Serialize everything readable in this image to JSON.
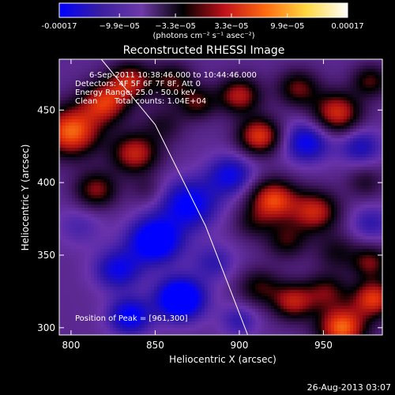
{
  "chart_data": {
    "type": "heatmap",
    "title": "Reconstructed RHESSI Image",
    "xlabel": "Heliocentric X (arcsec)",
    "ylabel": "Heliocentric Y (arcsec)",
    "xlim": [
      793,
      985
    ],
    "ylim": [
      295,
      485
    ],
    "x_ticks": [
      800,
      850,
      900,
      950
    ],
    "y_ticks": [
      300,
      350,
      400,
      450
    ],
    "colorbar": {
      "label": "(photons cm⁻² s⁻¹ asec⁻²)",
      "range": [
        -0.00017,
        0.00017
      ],
      "tick_values": [
        -0.00017,
        -9.9e-05,
        -3.3e-05,
        3.3e-05,
        9.9e-05,
        0.00017
      ],
      "tick_labels": [
        "-0.00017",
        "−9.9e−05",
        "−3.3e−05",
        "3.3e−05",
        "9.9e−05",
        "0.00017"
      ],
      "colors": [
        "#0000ff",
        "#3a1ea0",
        "#6e3aa8",
        "#000000",
        "#c0101a",
        "#ff6a10",
        "#ffd840",
        "#ffffff"
      ]
    },
    "annotations": [
      "6-Sep-2011 10:38:46.000 to 10:44:46.000",
      "Detectors: 4F 5F 6F 7F 8F, Att 0",
      "Energy Range: 25.0 - 50.0 keV",
      "Clean",
      "Total counts: 1.04E+04"
    ],
    "peak_label": "Position of Peak = [961,300]",
    "peak": [
      961,
      300
    ],
    "limb_curve": [
      [
        818,
        485
      ],
      [
        850,
        440
      ],
      [
        880,
        370
      ],
      [
        905,
        295
      ]
    ],
    "blobs": [
      {
        "x": 800,
        "y": 435,
        "v": 1.0,
        "s": 12
      },
      {
        "x": 820,
        "y": 455,
        "v": 0.8,
        "s": 10
      },
      {
        "x": 838,
        "y": 420,
        "v": 0.75,
        "s": 10
      },
      {
        "x": 835,
        "y": 470,
        "v": 0.7,
        "s": 9
      },
      {
        "x": 815,
        "y": 395,
        "v": 0.6,
        "s": 9
      },
      {
        "x": 805,
        "y": 370,
        "v": -0.2,
        "s": 10
      },
      {
        "x": 860,
        "y": 470,
        "v": 0.5,
        "s": 9
      },
      {
        "x": 855,
        "y": 440,
        "v": 0.3,
        "s": 9
      },
      {
        "x": 875,
        "y": 455,
        "v": 0.5,
        "s": 8
      },
      {
        "x": 900,
        "y": 460,
        "v": 0.7,
        "s": 9
      },
      {
        "x": 912,
        "y": 432,
        "v": 0.85,
        "s": 9
      },
      {
        "x": 935,
        "y": 465,
        "v": 0.55,
        "s": 9
      },
      {
        "x": 958,
        "y": 448,
        "v": 0.8,
        "s": 10
      },
      {
        "x": 978,
        "y": 470,
        "v": 0.5,
        "s": 8
      },
      {
        "x": 940,
        "y": 428,
        "v": -0.55,
        "s": 10
      },
      {
        "x": 972,
        "y": 425,
        "v": -0.4,
        "s": 9
      },
      {
        "x": 895,
        "y": 405,
        "v": -0.5,
        "s": 10
      },
      {
        "x": 870,
        "y": 385,
        "v": -0.6,
        "s": 12
      },
      {
        "x": 850,
        "y": 360,
        "v": -0.8,
        "s": 11
      },
      {
        "x": 828,
        "y": 340,
        "v": -0.5,
        "s": 10
      },
      {
        "x": 865,
        "y": 320,
        "v": -0.9,
        "s": 10
      },
      {
        "x": 835,
        "y": 308,
        "v": -0.6,
        "s": 9
      },
      {
        "x": 885,
        "y": 345,
        "v": -0.3,
        "s": 9
      },
      {
        "x": 845,
        "y": 395,
        "v": 0.2,
        "s": 7
      },
      {
        "x": 920,
        "y": 388,
        "v": 0.9,
        "s": 10
      },
      {
        "x": 945,
        "y": 380,
        "v": 0.75,
        "s": 10
      },
      {
        "x": 928,
        "y": 360,
        "v": 0.45,
        "s": 9
      },
      {
        "x": 908,
        "y": 372,
        "v": 0.3,
        "s": 8
      },
      {
        "x": 958,
        "y": 352,
        "v": 0.35,
        "s": 9
      },
      {
        "x": 978,
        "y": 372,
        "v": -0.3,
        "s": 9
      },
      {
        "x": 912,
        "y": 328,
        "v": 0.45,
        "s": 9
      },
      {
        "x": 932,
        "y": 318,
        "v": 0.7,
        "s": 9
      },
      {
        "x": 961,
        "y": 300,
        "v": 1.0,
        "s": 10
      },
      {
        "x": 952,
        "y": 325,
        "v": 0.5,
        "s": 9
      },
      {
        "x": 980,
        "y": 320,
        "v": 0.85,
        "s": 9
      },
      {
        "x": 978,
        "y": 345,
        "v": 0.55,
        "s": 8
      },
      {
        "x": 900,
        "y": 305,
        "v": -0.3,
        "s": 8
      },
      {
        "x": 975,
        "y": 400,
        "v": 0.3,
        "s": 8
      }
    ]
  },
  "footer": {
    "timestamp": "26-Aug-2013 03:07"
  }
}
